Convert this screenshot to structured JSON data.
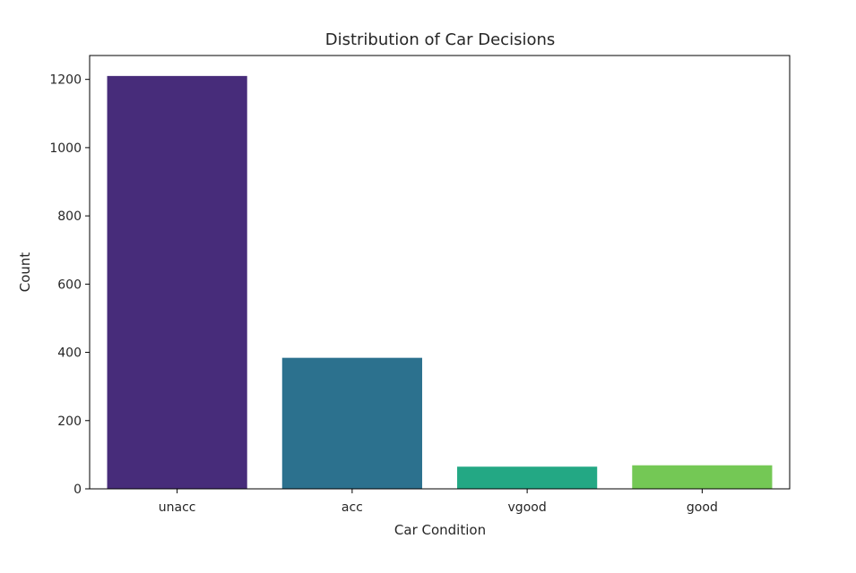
{
  "chart_data": {
    "type": "bar",
    "title": "Distribution of Car Decisions",
    "xlabel": "Car Condition",
    "ylabel": "Count",
    "categories": [
      "unacc",
      "acc",
      "vgood",
      "good"
    ],
    "values": [
      1210,
      384,
      65,
      69
    ],
    "colors": [
      "#472c7a",
      "#2c718e",
      "#23a884",
      "#74c855"
    ],
    "ylim": [
      0,
      1270
    ],
    "yticks": [
      0,
      200,
      400,
      600,
      800,
      1000,
      1200
    ],
    "grid": false
  }
}
